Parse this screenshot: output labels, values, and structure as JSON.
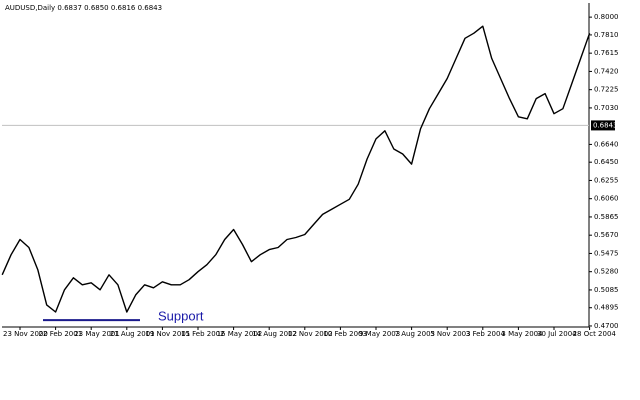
{
  "chart_data": {
    "type": "line",
    "title": "AUDUSD,Daily  0.6837 0.6850 0.6816 0.6843",
    "categories": [
      null,
      null,
      "23 Nov 2000",
      null,
      null,
      null,
      "22 Feb 2001",
      null,
      null,
      null,
      "23 May 2001",
      null,
      null,
      null,
      "21 Aug 2001",
      null,
      null,
      null,
      "19 Nov 2001",
      null,
      null,
      null,
      "15 Feb 2002",
      null,
      null,
      null,
      "16 May 2002",
      null,
      null,
      null,
      "14 Aug 2002",
      null,
      null,
      null,
      "12 Nov 2002",
      null,
      null,
      null,
      "10 Feb 2003",
      null,
      null,
      null,
      "9 May 2003",
      null,
      null,
      null,
      "7 Aug 2003",
      null,
      null,
      null,
      "5 Nov 2003",
      null,
      null,
      null,
      "3 Feb 2004",
      null,
      null,
      null,
      "3 May 2004",
      null,
      null,
      null,
      "30 Jul 2004",
      null,
      null,
      null,
      "28 Oct 2004"
    ],
    "series": [
      {
        "name": "AUDUSD",
        "color": "#000000",
        "values": [
          0.5247,
          0.5462,
          0.5624,
          0.5538,
          0.5301,
          0.4925,
          0.4849,
          0.5086,
          0.5215,
          0.514,
          0.5161,
          0.5086,
          0.5247,
          0.514,
          0.4849,
          0.5032,
          0.514,
          0.5108,
          0.5172,
          0.514,
          0.514,
          0.5194,
          0.528,
          0.5355,
          0.5462,
          0.5624,
          0.5731,
          0.557,
          0.5387,
          0.5462,
          0.5516,
          0.5538,
          0.5624,
          0.5645,
          0.5677,
          0.5785,
          0.5892,
          0.5946,
          0.6,
          0.6054,
          0.6215,
          0.6484,
          0.6699,
          0.6785,
          0.6591,
          0.6538,
          0.643,
          0.6806,
          0.7022,
          0.7183,
          0.7344,
          0.7559,
          0.7774,
          0.7828,
          0.7903,
          0.7559,
          0.7344,
          0.7129,
          0.6935,
          0.6914,
          0.7129,
          0.7183,
          0.6968,
          0.7022,
          0.729,
          0.7559,
          0.7828
        ]
      }
    ],
    "ylim": [
      0.4689,
      0.8151
    ],
    "yticks": [
      {
        "value": 0.47,
        "label": "0.4700"
      },
      {
        "value": 0.4895,
        "label": "0.4895"
      },
      {
        "value": 0.5085,
        "label": "0.5085"
      },
      {
        "value": 0.528,
        "label": "0.5280"
      },
      {
        "value": 0.5475,
        "label": "0.5475"
      },
      {
        "value": 0.567,
        "label": "0.5670"
      },
      {
        "value": 0.5865,
        "label": "0.5865"
      },
      {
        "value": 0.606,
        "label": "0.6060"
      },
      {
        "value": 0.6255,
        "label": "0.6255"
      },
      {
        "value": 0.645,
        "label": "0.6450"
      },
      {
        "value": 0.664,
        "label": "0.6640"
      },
      {
        "value": 0.703,
        "label": "0.7030"
      },
      {
        "value": 0.7225,
        "label": "0.7225"
      },
      {
        "value": 0.742,
        "label": "0.7420"
      },
      {
        "value": 0.7615,
        "label": "0.7615"
      },
      {
        "value": 0.781,
        "label": "0.7810"
      },
      {
        "value": 0.8,
        "label": "0.8000"
      }
    ],
    "current_price": {
      "value": 0.6843,
      "label": "0.6843"
    },
    "support": {
      "label": "Support",
      "level": 0.4763,
      "color": "#1a1a8c"
    }
  }
}
